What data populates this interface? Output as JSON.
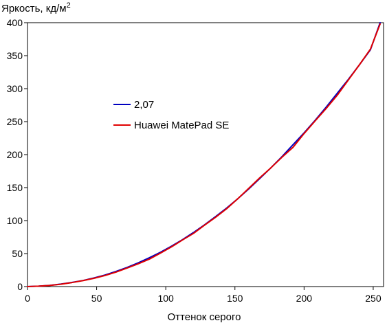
{
  "chart_data": {
    "type": "line",
    "title": "",
    "xlabel": "Оттенок серого",
    "ylabel_main": "Яркость, кд/м",
    "ylabel_sup": "2",
    "xlim": [
      0,
      255
    ],
    "ylim": [
      0,
      400
    ],
    "x_ticks": [
      0,
      50,
      100,
      150,
      200,
      250
    ],
    "y_ticks": [
      0,
      50,
      100,
      150,
      200,
      250,
      300,
      350,
      400
    ],
    "x_tick_labels": [
      "0",
      "50",
      "100",
      "150",
      "200",
      "250"
    ],
    "y_tick_labels": [
      "0",
      "50",
      "100",
      "150",
      "200",
      "250",
      "300",
      "350",
      "400"
    ],
    "grid": false,
    "legend_position": "center-left",
    "series": [
      {
        "name": "2,07",
        "color": "#0000c0",
        "x": [
          0,
          8,
          16,
          24,
          32,
          40,
          48,
          56,
          64,
          72,
          80,
          88,
          96,
          104,
          112,
          120,
          128,
          136,
          144,
          152,
          160,
          168,
          176,
          184,
          192,
          200,
          208,
          216,
          224,
          232,
          240,
          248,
          255
        ],
        "y": [
          0,
          0.6,
          1.8,
          3.7,
          6.2,
          9.2,
          13,
          17.5,
          22.9,
          29,
          35.9,
          43.5,
          51.8,
          61,
          71,
          81.9,
          93.5,
          106,
          119,
          133,
          148,
          164,
          180,
          197,
          215,
          233,
          252,
          272,
          293,
          314,
          336,
          359,
          400
        ]
      },
      {
        "name": "Huawei MatePad SE",
        "color": "#e00000",
        "x": [
          0,
          8,
          16,
          24,
          32,
          40,
          48,
          56,
          64,
          72,
          80,
          88,
          96,
          104,
          112,
          120,
          128,
          136,
          144,
          152,
          160,
          168,
          176,
          184,
          192,
          200,
          208,
          216,
          224,
          232,
          240,
          248,
          255
        ],
        "y": [
          0,
          0.6,
          1.7,
          3.5,
          6,
          9,
          12.5,
          16.8,
          22,
          28,
          34.5,
          41.5,
          50.5,
          60,
          70.5,
          80.5,
          93,
          105,
          118,
          133,
          149,
          165,
          180,
          196,
          211,
          232,
          251,
          270,
          290,
          313,
          336,
          360,
          398
        ]
      }
    ]
  }
}
